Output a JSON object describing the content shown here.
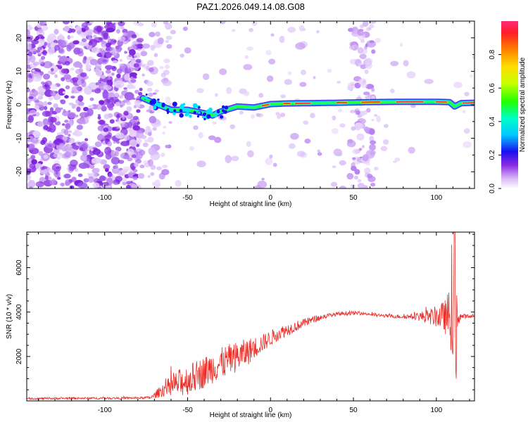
{
  "figure": {
    "title": "PAZ1.2026.049.14.08.G08"
  },
  "chart_data": [
    {
      "type": "heatmap",
      "name": "spectrogram",
      "xlabel": "Height of straight line (km)",
      "ylabel": "Frequency (Hz)",
      "xlim": [
        -147,
        123
      ],
      "ylim": [
        -25,
        25
      ],
      "x_ticks": [
        -100,
        -50,
        0,
        50,
        100
      ],
      "y_ticks": [
        -20,
        -10,
        0,
        10,
        20
      ],
      "x_tick_labels": [
        "-100",
        "-50",
        "0",
        "50",
        "100"
      ],
      "y_tick_labels": [
        "-20",
        "-10",
        "0",
        "10",
        "20"
      ],
      "colorbar": {
        "label": "Normalized spectral amplitude",
        "range": [
          0,
          1
        ],
        "ticks": [
          0,
          0.2,
          0.4,
          0.6,
          0.8
        ],
        "tick_labels": [
          "0.0",
          "0.2",
          "0.4",
          "0.6",
          "0.8"
        ]
      },
      "ridge": {
        "description_points_x": [
          -77,
          -70,
          -60,
          -50,
          -40,
          -35,
          -30,
          -20,
          -10,
          0,
          10,
          25,
          40,
          60,
          80,
          100,
          108,
          111,
          115,
          123
        ],
        "description_points_y": [
          2,
          0.5,
          -1.5,
          -1.5,
          -2.5,
          -3.2,
          -2.0,
          -0.5,
          -0.8,
          0.2,
          0.4,
          0.5,
          0.6,
          0.8,
          0.9,
          0.9,
          0.8,
          -0.5,
          0.5,
          0.6
        ]
      }
    },
    {
      "type": "line",
      "name": "snr",
      "xlabel": "Height of straight line (km)",
      "ylabel": "SNR (10 * v/v)",
      "xlim": [
        -147,
        123
      ],
      "ylim": [
        0,
        7600
      ],
      "x_ticks": [
        -100,
        -50,
        0,
        50,
        100
      ],
      "y_ticks": [
        2000,
        4000,
        6000
      ],
      "x_tick_labels": [
        "-100",
        "-50",
        "0",
        "50",
        "100"
      ],
      "y_tick_labels": [
        "2000",
        "4000",
        "6000"
      ],
      "color": "#e8302a",
      "series": [
        {
          "name": "SNR",
          "x": [
            -147,
            -120,
            -100,
            -80,
            -72,
            -65,
            -55,
            -45,
            -35,
            -25,
            -15,
            -5,
            5,
            15,
            25,
            35,
            45,
            55,
            65,
            75,
            85,
            95,
            100,
            105,
            108,
            111,
            113,
            116,
            123
          ],
          "mean": [
            100,
            120,
            120,
            130,
            150,
            500,
            800,
            1100,
            1500,
            1850,
            2150,
            2600,
            3050,
            3350,
            3650,
            3850,
            3950,
            3950,
            3850,
            3800,
            3800,
            3800,
            3800,
            3800,
            3800,
            3800,
            3800,
            3800,
            3800
          ],
          "amp": [
            60,
            60,
            60,
            60,
            80,
            400,
            800,
            900,
            900,
            900,
            800,
            500,
            400,
            300,
            200,
            120,
            120,
            100,
            100,
            100,
            150,
            400,
            600,
            900,
            1600,
            3000,
            500,
            150,
            100
          ]
        }
      ]
    }
  ]
}
